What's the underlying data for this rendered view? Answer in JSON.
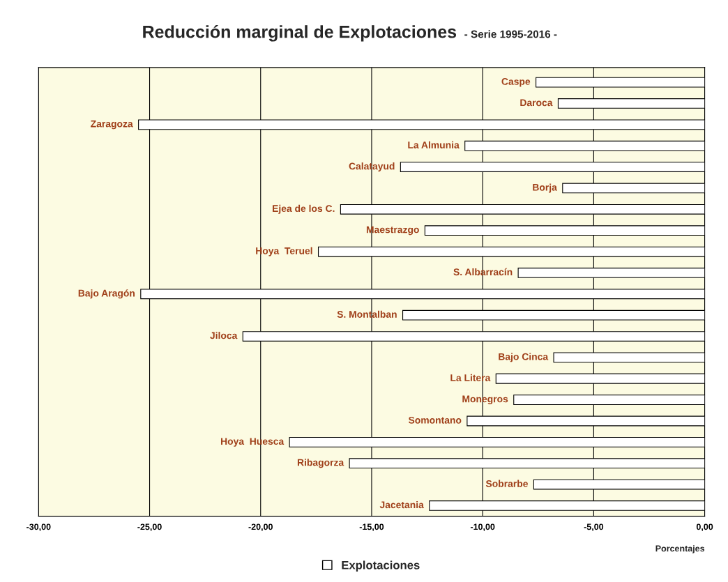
{
  "chart_data": {
    "type": "bar",
    "orientation": "horizontal",
    "title": "Reducción marginal de Explotaciones",
    "subtitle": "- Serie 1995-2016 -",
    "xlabel": "Porcentajes",
    "categories": [
      "Caspe",
      "Daroca",
      "Zaragoza",
      "La Almunia",
      "Calatayud",
      "Borja",
      "Ejea de los C.",
      "Maestrazgo",
      "Hoya  Teruel",
      "S. Albarracín",
      "Bajo Aragón",
      "S. Montalban",
      "Jiloca",
      "Bajo Cinca",
      "La Litera",
      "Monegros",
      "Somontano",
      "Hoya  Huesca",
      "Ribagorza",
      "Sobrarbe",
      "Jacetania"
    ],
    "series": [
      {
        "name": "Explotaciones",
        "color": "#ffffff",
        "values": [
          -7.6,
          -6.6,
          -25.5,
          -10.8,
          -13.7,
          -6.4,
          -16.4,
          -12.6,
          -17.4,
          -8.4,
          -25.4,
          -13.6,
          -20.8,
          -6.8,
          -9.4,
          -8.6,
          -10.7,
          -18.7,
          -16.0,
          -7.7,
          -12.4
        ]
      }
    ],
    "xlim": [
      -30,
      0
    ],
    "xticks": [
      {
        "value": -30,
        "label": "-30,00"
      },
      {
        "value": -25,
        "label": "-25,00"
      },
      {
        "value": -20,
        "label": "-20,00"
      },
      {
        "value": -15,
        "label": "-15,00"
      },
      {
        "value": -10,
        "label": "-10,00"
      },
      {
        "value": -5,
        "label": "-5,00"
      },
      {
        "value": 0,
        "label": "0,00"
      }
    ],
    "grid": "x",
    "legend": "bottom"
  }
}
